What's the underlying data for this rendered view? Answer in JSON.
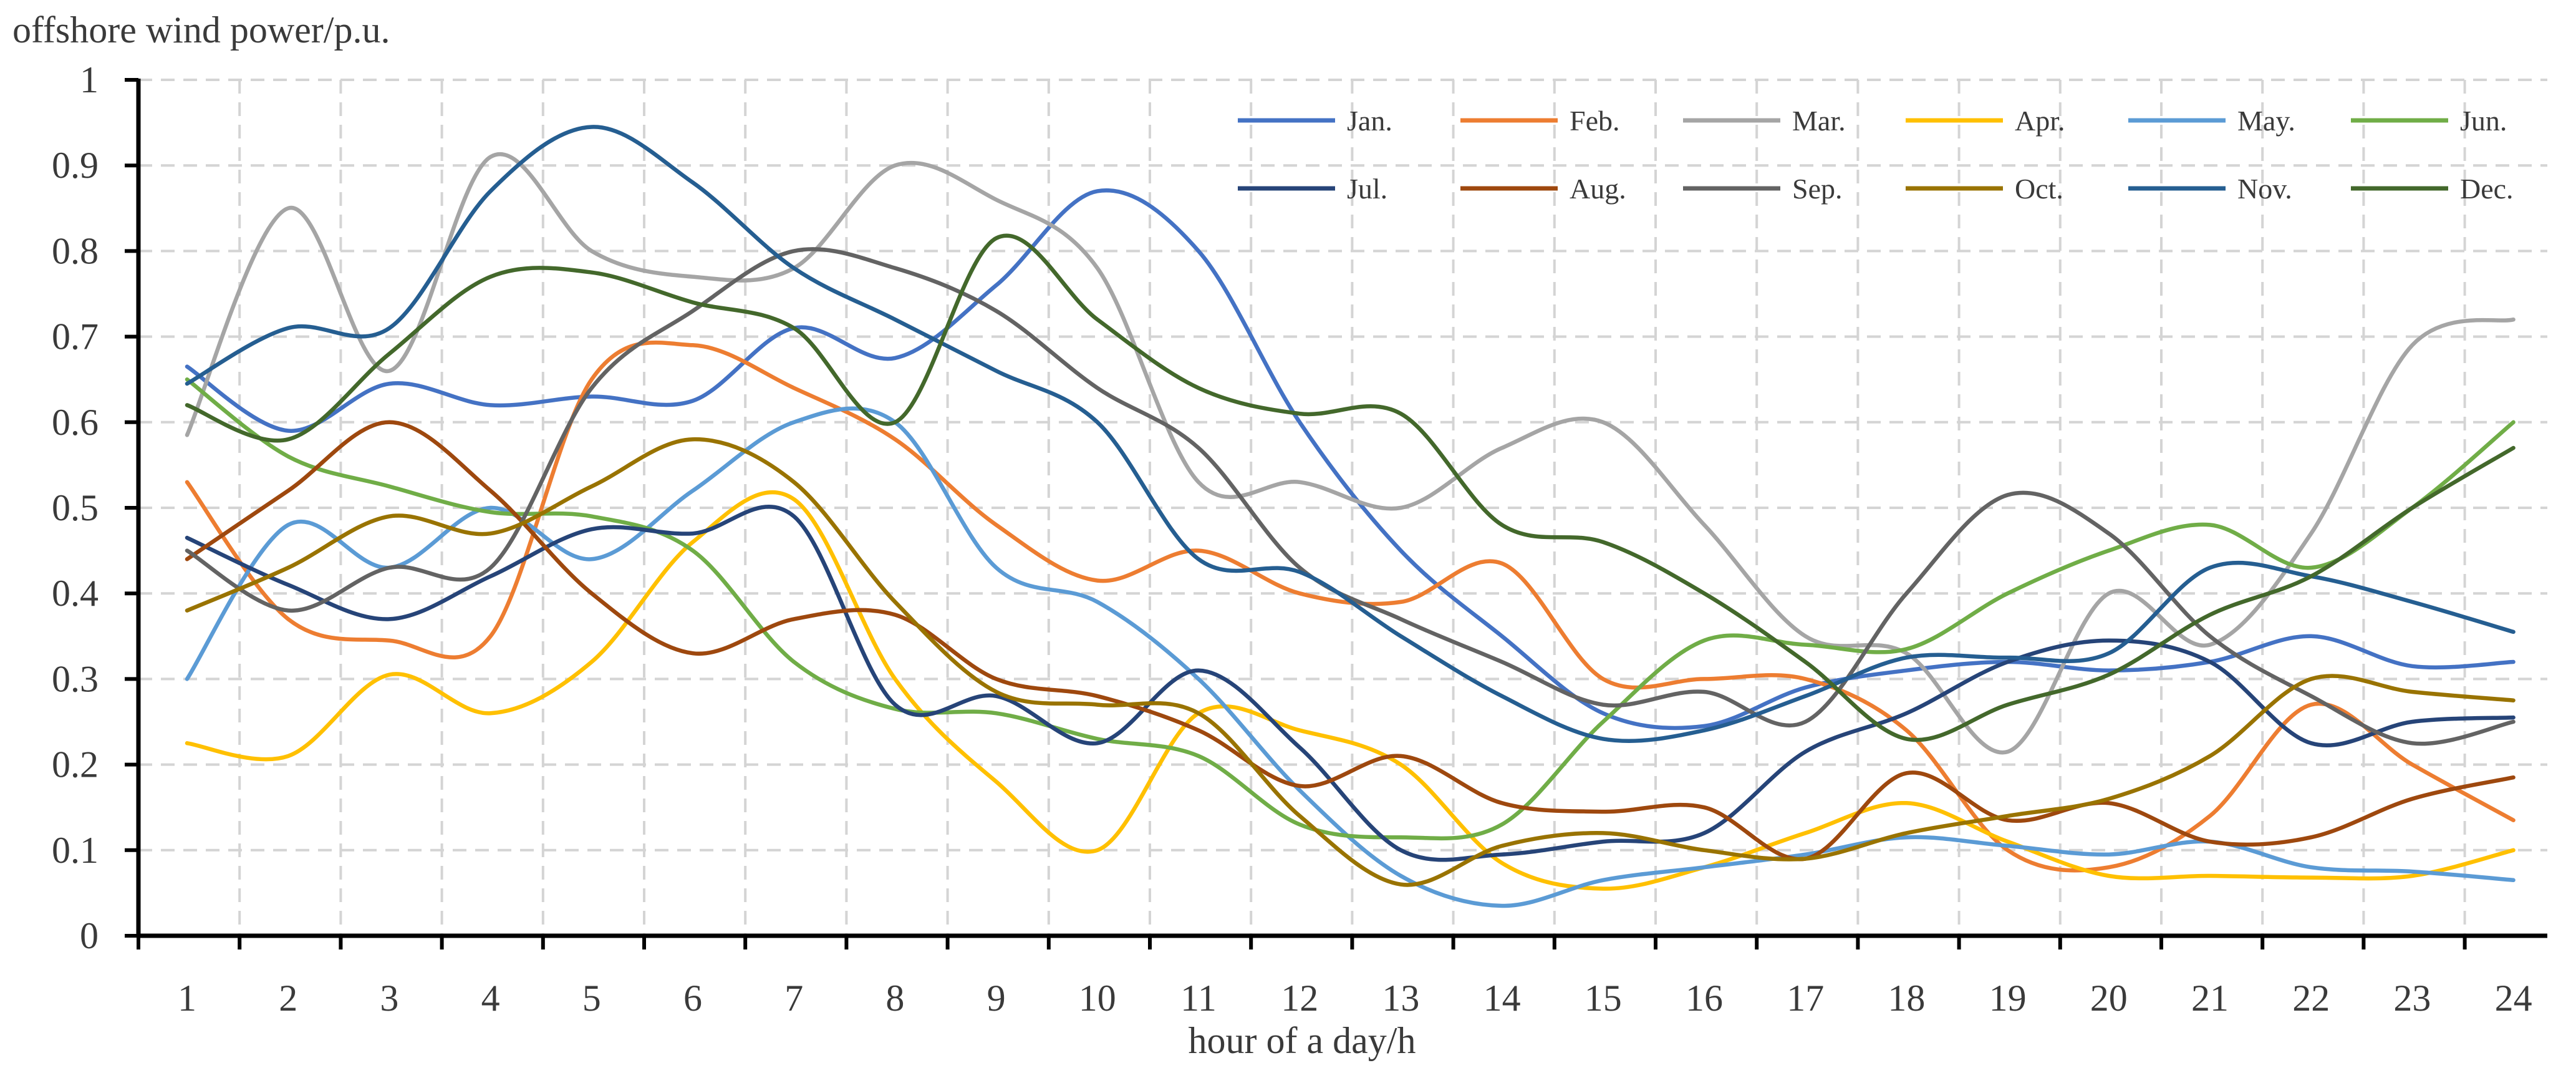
{
  "chart_data": {
    "type": "line",
    "ylabel": "offshore wind power/p.u.",
    "xlabel": "hour of a day/h",
    "x": [
      1,
      2,
      3,
      4,
      5,
      6,
      7,
      8,
      9,
      10,
      11,
      12,
      13,
      14,
      15,
      16,
      17,
      18,
      19,
      20,
      21,
      22,
      23,
      24
    ],
    "ylim": [
      0,
      1
    ],
    "yticks": [
      0,
      0.1,
      0.2,
      0.3,
      0.4,
      0.5,
      0.6,
      0.7,
      0.8,
      0.9,
      1
    ],
    "ytick_labels": [
      "0",
      "0.1",
      "0.2",
      "0.3",
      "0.4",
      "0.5",
      "0.6",
      "0.7",
      "0.8",
      "0.9",
      "1"
    ],
    "grid": true,
    "legend_position": "top-right",
    "series": [
      {
        "name": "Jan.",
        "color": "#4472C4",
        "values": [
          0.665,
          0.59,
          0.645,
          0.62,
          0.63,
          0.625,
          0.71,
          0.675,
          0.76,
          0.87,
          0.8,
          0.6,
          0.45,
          0.35,
          0.26,
          0.245,
          0.29,
          0.31,
          0.32,
          0.31,
          0.32,
          0.35,
          0.315,
          0.32
        ]
      },
      {
        "name": "Feb.",
        "color": "#ED7D31",
        "values": [
          0.53,
          0.37,
          0.345,
          0.35,
          0.65,
          0.69,
          0.64,
          0.58,
          0.48,
          0.415,
          0.45,
          0.4,
          0.39,
          0.435,
          0.3,
          0.3,
          0.3,
          0.24,
          0.1,
          0.08,
          0.14,
          0.27,
          0.2,
          0.135
        ]
      },
      {
        "name": "Mar.",
        "color": "#A5A5A5",
        "values": [
          0.585,
          0.85,
          0.66,
          0.91,
          0.8,
          0.77,
          0.78,
          0.9,
          0.86,
          0.78,
          0.53,
          0.53,
          0.5,
          0.57,
          0.6,
          0.48,
          0.35,
          0.33,
          0.215,
          0.4,
          0.34,
          0.47,
          0.69,
          0.72
        ]
      },
      {
        "name": "Apr.",
        "color": "#FFC000",
        "values": [
          0.225,
          0.21,
          0.305,
          0.26,
          0.32,
          0.46,
          0.51,
          0.3,
          0.18,
          0.1,
          0.26,
          0.24,
          0.2,
          0.085,
          0.055,
          0.08,
          0.12,
          0.155,
          0.11,
          0.07,
          0.07,
          0.068,
          0.07,
          0.1
        ]
      },
      {
        "name": "May.",
        "color": "#5B9BD5",
        "values": [
          0.3,
          0.48,
          0.43,
          0.5,
          0.44,
          0.52,
          0.6,
          0.6,
          0.43,
          0.39,
          0.3,
          0.17,
          0.07,
          0.035,
          0.065,
          0.08,
          0.095,
          0.115,
          0.105,
          0.095,
          0.11,
          0.08,
          0.075,
          0.065
        ]
      },
      {
        "name": "Jun.",
        "color": "#70AD47",
        "values": [
          0.65,
          0.56,
          0.525,
          0.495,
          0.49,
          0.45,
          0.32,
          0.265,
          0.26,
          0.23,
          0.21,
          0.13,
          0.115,
          0.13,
          0.25,
          0.345,
          0.34,
          0.335,
          0.4,
          0.45,
          0.48,
          0.43,
          0.5,
          0.6
        ]
      },
      {
        "name": "Jul.",
        "color": "#264478",
        "values": [
          0.465,
          0.41,
          0.37,
          0.42,
          0.475,
          0.47,
          0.49,
          0.27,
          0.28,
          0.225,
          0.31,
          0.22,
          0.1,
          0.095,
          0.11,
          0.12,
          0.215,
          0.26,
          0.32,
          0.345,
          0.32,
          0.225,
          0.25,
          0.255
        ]
      },
      {
        "name": "Aug.",
        "color": "#9E480E",
        "values": [
          0.44,
          0.52,
          0.6,
          0.52,
          0.4,
          0.33,
          0.37,
          0.375,
          0.3,
          0.28,
          0.24,
          0.175,
          0.21,
          0.155,
          0.145,
          0.15,
          0.09,
          0.19,
          0.135,
          0.155,
          0.11,
          0.115,
          0.16,
          0.185
        ]
      },
      {
        "name": "Sep.",
        "color": "#636363",
        "values": [
          0.45,
          0.38,
          0.43,
          0.43,
          0.64,
          0.73,
          0.8,
          0.78,
          0.73,
          0.64,
          0.57,
          0.43,
          0.37,
          0.32,
          0.27,
          0.285,
          0.25,
          0.4,
          0.515,
          0.47,
          0.35,
          0.28,
          0.225,
          0.25
        ]
      },
      {
        "name": "Oct.",
        "color": "#997300",
        "values": [
          0.38,
          0.43,
          0.49,
          0.47,
          0.525,
          0.58,
          0.53,
          0.39,
          0.285,
          0.27,
          0.26,
          0.14,
          0.06,
          0.105,
          0.12,
          0.1,
          0.09,
          0.12,
          0.14,
          0.16,
          0.21,
          0.3,
          0.285,
          0.275
        ]
      },
      {
        "name": "Nov.",
        "color": "#255E91",
        "values": [
          0.645,
          0.71,
          0.71,
          0.87,
          0.945,
          0.88,
          0.78,
          0.72,
          0.66,
          0.6,
          0.44,
          0.425,
          0.35,
          0.28,
          0.23,
          0.24,
          0.28,
          0.325,
          0.325,
          0.33,
          0.43,
          0.42,
          0.39,
          0.355
        ]
      },
      {
        "name": "Dec.",
        "color": "#43682B",
        "values": [
          0.62,
          0.58,
          0.68,
          0.77,
          0.775,
          0.74,
          0.71,
          0.6,
          0.815,
          0.72,
          0.64,
          0.61,
          0.61,
          0.48,
          0.46,
          0.4,
          0.32,
          0.23,
          0.27,
          0.305,
          0.375,
          0.42,
          0.5,
          0.57
        ]
      }
    ]
  }
}
